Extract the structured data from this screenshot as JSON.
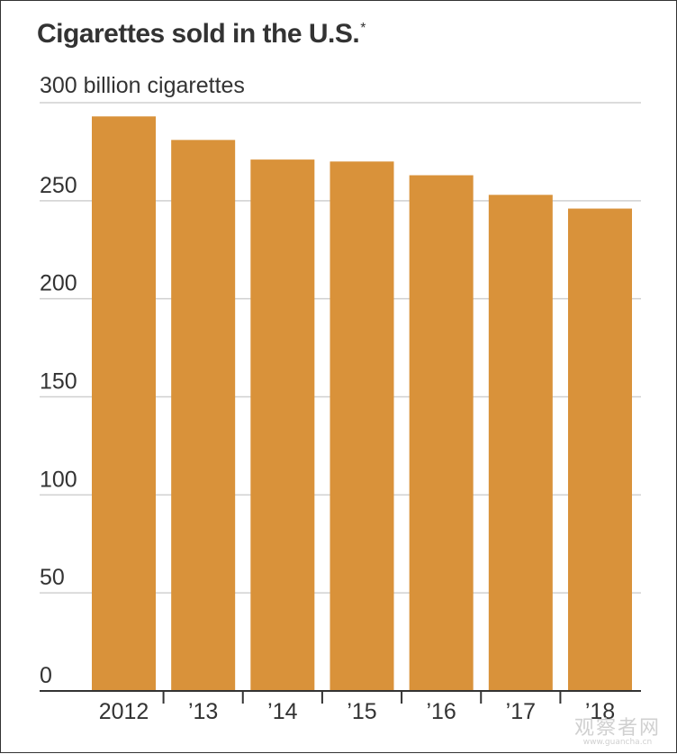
{
  "title": "Cigarettes sold in the U.S.",
  "footnote_marker": "*",
  "unit_label": "300 billion cigarettes",
  "bar_color": "#D9923A",
  "grid_color": "#d0d0d0",
  "axis_color": "#333333",
  "text_color": "#333333",
  "watermark": {
    "main": "观察者网",
    "sub": "www.guancha.cn"
  },
  "chart_data": {
    "type": "bar",
    "title": "Cigarettes sold in the U.S.*",
    "ylabel": "300 billion cigarettes",
    "xlabel": "",
    "categories": [
      "2012",
      "’13",
      "’14",
      "’15",
      "’16",
      "’17",
      "’18"
    ],
    "values": [
      293,
      281,
      271,
      270,
      263,
      253,
      246
    ],
    "ylim": [
      0,
      300
    ],
    "yticks": [
      0,
      50,
      100,
      150,
      200,
      250,
      300
    ],
    "ytick_labels": [
      "0",
      "50",
      "100",
      "150",
      "200",
      "250",
      ""
    ],
    "grid": true,
    "legend": "none"
  }
}
